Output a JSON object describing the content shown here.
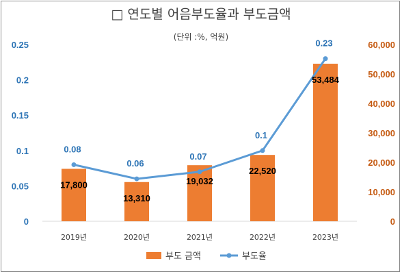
{
  "chart_data": {
    "type": "bar+line",
    "title": "□ 연도별 어음부도율과 부도금액",
    "subtitle": "(단위 :%, 억원)",
    "categories": [
      "2019년",
      "2020년",
      "2021년",
      "2022년",
      "2023년"
    ],
    "series": [
      {
        "name": "부도 금액",
        "type": "bar",
        "axis": "right",
        "color": "#ed7d31",
        "values": [
          17800,
          13310,
          19032,
          22520,
          53484
        ],
        "labels": [
          "17,800",
          "13,310",
          "19,032",
          "22,520",
          "53,484"
        ]
      },
      {
        "name": "부도율",
        "type": "line",
        "axis": "left",
        "color": "#5b9bd5",
        "values": [
          0.08,
          0.06,
          0.07,
          0.1,
          0.23
        ],
        "labels": [
          "0.08",
          "0.06",
          "0.07",
          "0.1",
          "0.23"
        ]
      }
    ],
    "y_left": {
      "min": 0,
      "max": 0.25,
      "ticks": [
        0,
        0.05,
        0.1,
        0.15,
        0.2,
        0.25
      ],
      "tick_labels": [
        "0",
        "0.05",
        "0.1",
        "0.15",
        "0.2",
        "0.25"
      ],
      "color": "#2e75b6"
    },
    "y_right": {
      "min": 0,
      "max": 60000,
      "ticks": [
        0,
        10000,
        20000,
        30000,
        40000,
        50000,
        60000
      ],
      "tick_labels": [
        "0",
        "10,000",
        "20,000",
        "30,000",
        "40,000",
        "50,000",
        "60,000"
      ],
      "color": "#c55a11"
    },
    "grid": false,
    "legend": {
      "placement": "bottom",
      "items": [
        "부도 금액",
        "부도율"
      ]
    }
  }
}
